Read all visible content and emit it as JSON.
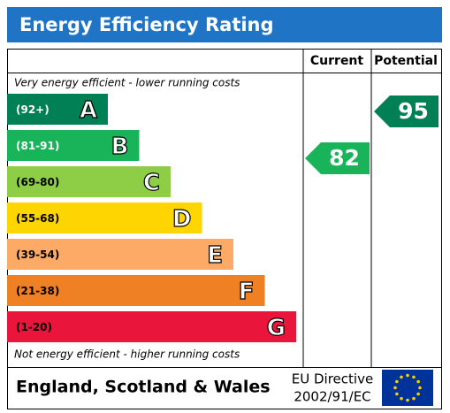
{
  "title": "Energy Efficiency Rating",
  "headers": {
    "current": "Current",
    "potential": "Potential"
  },
  "top_note": "Very energy efficient - lower running costs",
  "bottom_note": "Not energy efficient - higher running costs",
  "bands": [
    {
      "range": "(92+)",
      "letter": "A",
      "color": "#008054"
    },
    {
      "range": "(81-91)",
      "letter": "B",
      "color": "#19b459"
    },
    {
      "range": "(69-80)",
      "letter": "C",
      "color": "#8dce46"
    },
    {
      "range": "(55-68)",
      "letter": "D",
      "color": "#ffd500"
    },
    {
      "range": "(39-54)",
      "letter": "E",
      "color": "#fcaa65"
    },
    {
      "range": "(21-38)",
      "letter": "F",
      "color": "#ef8023"
    },
    {
      "range": "(1-20)",
      "letter": "G",
      "color": "#e9153b"
    }
  ],
  "current": {
    "value": 82,
    "color": "#19b459"
  },
  "potential": {
    "value": 95,
    "color": "#008054"
  },
  "footer": {
    "region": "England, Scotland & Wales",
    "directive_line1": "EU Directive",
    "directive_line2": "2002/91/EC"
  }
}
